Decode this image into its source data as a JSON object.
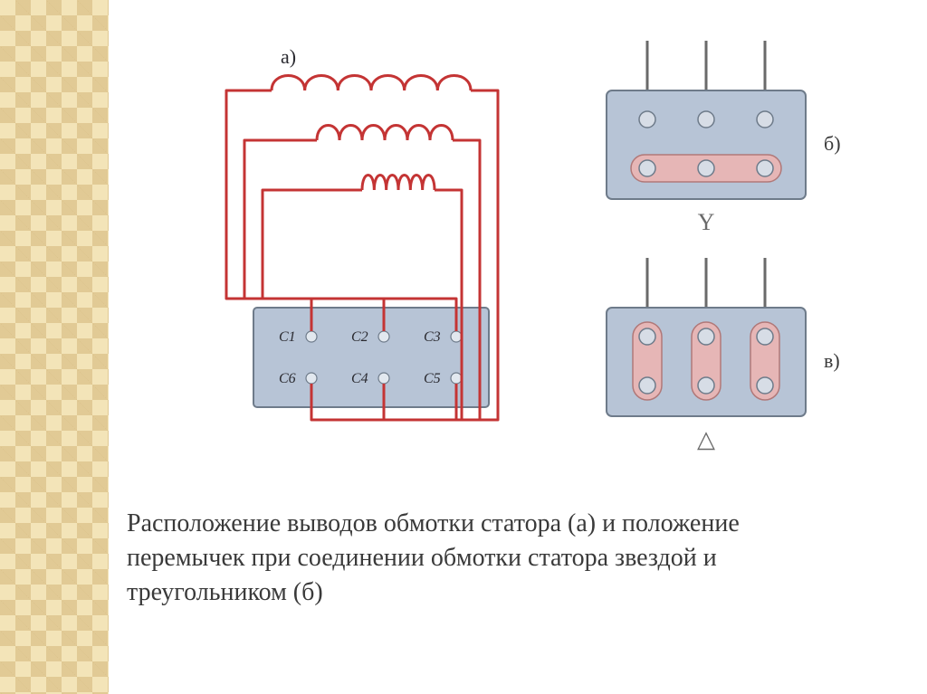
{
  "caption": "Расположение выводов обмотки статора (а) и положение перемычек при соединении обмотки статора звездой и треугольником (б)",
  "fig_a": {
    "label": "а)",
    "terminals_top": [
      "С1",
      "С2",
      "С3"
    ],
    "terminals_bot": [
      "С6",
      "С4",
      "С5"
    ],
    "block_fill": "#b7c4d6",
    "block_stroke": "#6e7b8a",
    "coil_stroke": "#c43434",
    "coil_width": 3,
    "terminal_fill": "#e2e8ef",
    "terminal_stroke": "#6e7b8a",
    "text_color": "#2a2a30"
  },
  "fig_b": {
    "label": "б)",
    "symbol": "Y",
    "block_fill": "#b7c4d6",
    "block_stroke": "#6e7b8a",
    "lead_stroke": "#6a6a6a",
    "lead_width": 3,
    "bar_fill": "#e6b6b6",
    "bar_stroke": "#b07878",
    "terminal_fill": "#d7dde6",
    "terminal_stroke": "#6e7b8a",
    "text_color": "#6a6a6a"
  },
  "fig_v": {
    "label": "в)",
    "symbol": "△",
    "block_fill": "#b7c4d6",
    "block_stroke": "#6e7b8a",
    "lead_stroke": "#6a6a6a",
    "lead_width": 3,
    "bar_fill": "#e6b6b6",
    "bar_stroke": "#b07878",
    "terminal_fill": "#d7dde6",
    "terminal_stroke": "#6e7b8a",
    "text_color": "#6a6a6a"
  },
  "label_font_size": 22,
  "terminal_font_size": 16,
  "symbol_font_size": 26
}
